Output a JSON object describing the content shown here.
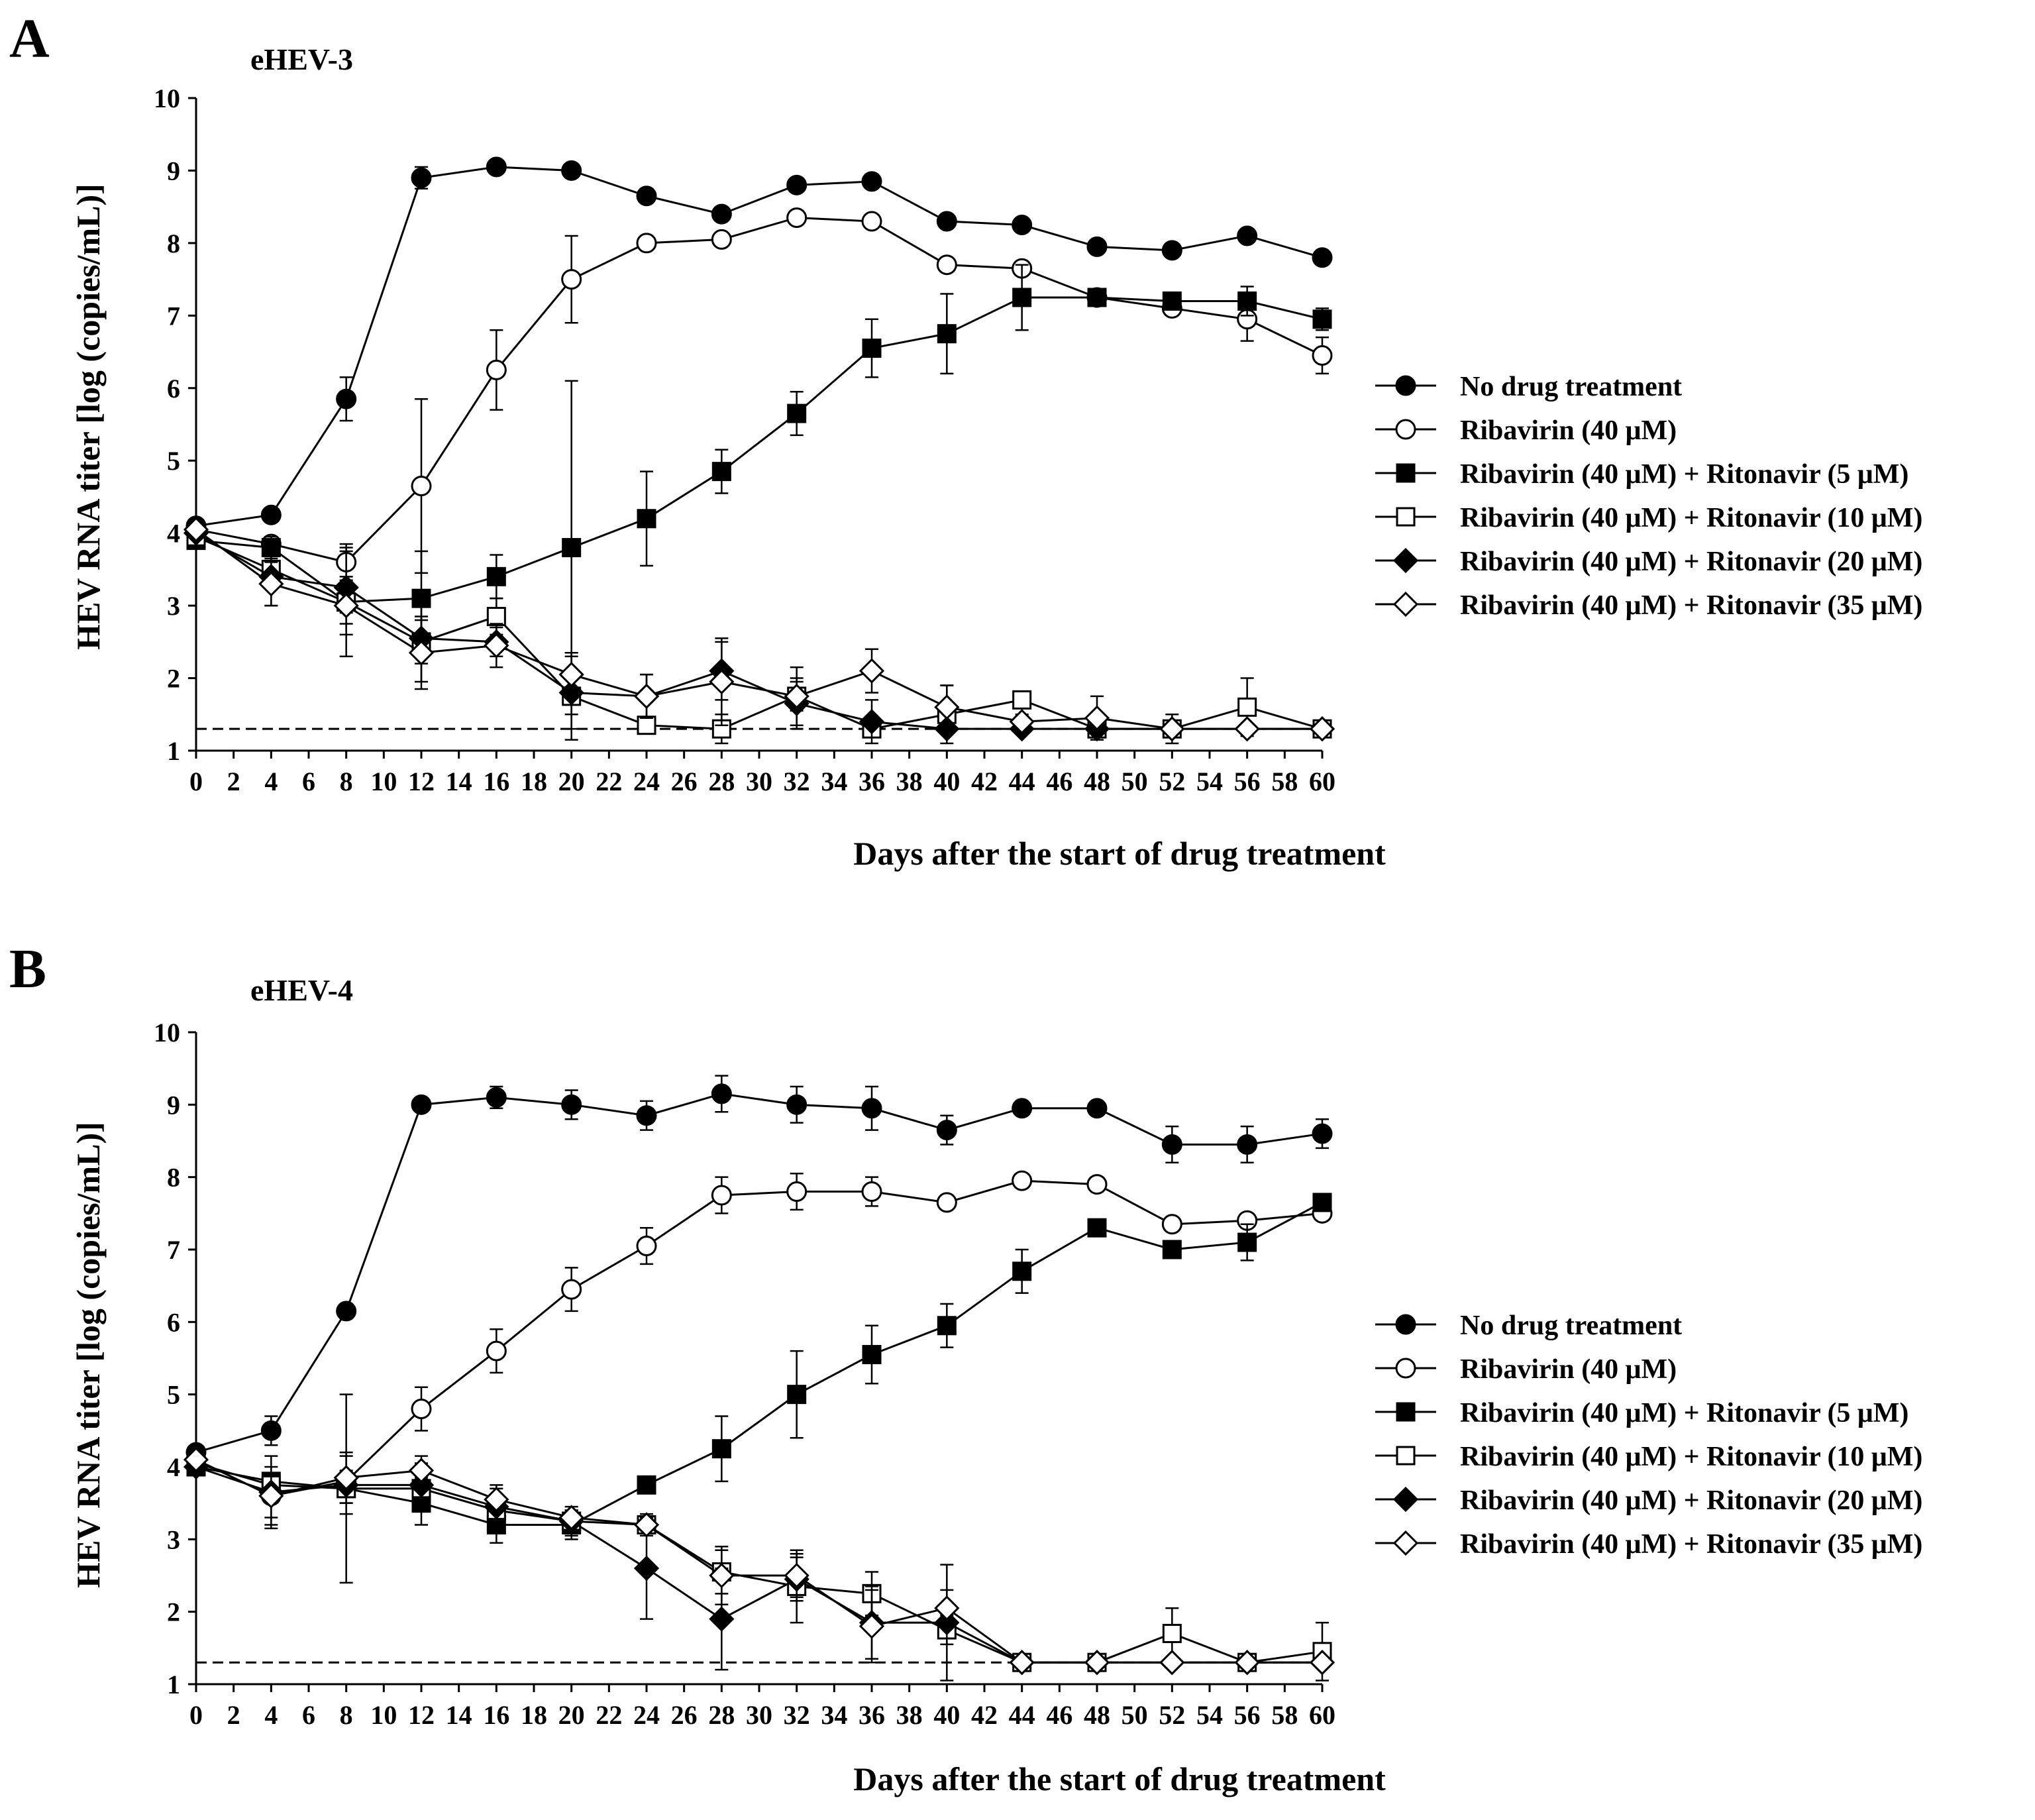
{
  "chart_data": [
    {
      "panel": "A",
      "type": "line",
      "title": "eHEV-3",
      "xlabel": "Days after the start of drug treatment",
      "ylabel": "HEV RNA titer [log (copies/mL)]",
      "xlim": [
        0,
        60
      ],
      "ylim": [
        1,
        10
      ],
      "x_ticks": [
        "0",
        "2",
        "4",
        "6",
        "8",
        "10",
        "12",
        "14",
        "16",
        "18",
        "20",
        "22",
        "24",
        "26",
        "28",
        "30",
        "32",
        "34",
        "36",
        "38",
        "40",
        "42",
        "44",
        "46",
        "48",
        "50",
        "52",
        "54",
        "56",
        "58",
        "60"
      ],
      "y_ticks": [
        "1",
        "2",
        "3",
        "4",
        "5",
        "6",
        "7",
        "8",
        "9",
        "10"
      ],
      "detection_limit": 1.3,
      "x": [
        0,
        4,
        8,
        12,
        16,
        20,
        24,
        28,
        32,
        36,
        40,
        44,
        48,
        52,
        56,
        60
      ],
      "series": [
        {
          "name": "No drug treatment",
          "marker": "circle",
          "fill": "#000000",
          "values": [
            4.1,
            4.25,
            5.85,
            8.9,
            9.05,
            9.0,
            8.65,
            8.4,
            8.8,
            8.85,
            8.3,
            8.25,
            7.95,
            7.9,
            8.1,
            7.8
          ],
          "errors": [
            0.05,
            0.05,
            0.3,
            0.15,
            0.05,
            0.05,
            0.05,
            0.05,
            0.05,
            0.05,
            0.05,
            0.05,
            0.05,
            0.05,
            0.05,
            0.05
          ]
        },
        {
          "name": "Ribavirin (40 μM)",
          "marker": "circle",
          "fill": "#ffffff",
          "values": [
            4.05,
            3.85,
            3.6,
            4.65,
            6.25,
            7.5,
            8.0,
            8.05,
            8.35,
            8.3,
            7.7,
            7.65,
            7.25,
            7.1,
            6.95,
            6.45
          ],
          "errors": [
            0.05,
            0.1,
            0.25,
            1.2,
            0.55,
            0.6,
            0.05,
            0.05,
            0.05,
            0.05,
            0.05,
            0.05,
            0.05,
            0.05,
            0.3,
            0.25
          ]
        },
        {
          "name": "Ribavirin (40 μM) + Ritonavir (5 μM)",
          "marker": "square",
          "fill": "#000000",
          "values": [
            3.9,
            3.8,
            3.05,
            3.1,
            3.4,
            3.8,
            4.2,
            4.85,
            5.65,
            6.55,
            6.75,
            7.25,
            7.25,
            7.2,
            7.2,
            6.95
          ],
          "errors": [
            0.05,
            0.15,
            0.75,
            0.65,
            0.3,
            2.3,
            0.65,
            0.3,
            0.3,
            0.4,
            0.55,
            0.45,
            0.05,
            0.1,
            0.2,
            0.15
          ]
        },
        {
          "name": "Ribavirin (40 μM) + Ritonavir (10 μM)",
          "marker": "square",
          "fill": "#ffffff",
          "values": [
            3.95,
            3.5,
            3.05,
            2.5,
            2.85,
            1.75,
            1.35,
            1.3,
            1.75,
            1.3,
            1.5,
            1.7,
            1.3,
            1.3,
            1.6,
            1.3
          ],
          "errors": [
            0.05,
            0.2,
            0.15,
            0.3,
            0.25,
            0.6,
            0.05,
            0.2,
            0.4,
            0.05,
            0.4,
            0.05,
            0.05,
            0.05,
            0.4,
            0.05
          ]
        },
        {
          "name": "Ribavirin (40 μM) + Ritonavir (20 μM)",
          "marker": "diamond",
          "fill": "#000000",
          "values": [
            4.0,
            3.4,
            3.25,
            2.55,
            2.5,
            1.8,
            1.75,
            2.1,
            1.65,
            1.4,
            1.3,
            1.3,
            1.3,
            1.3,
            1.3,
            1.3
          ],
          "errors": [
            0.05,
            0.4,
            0.5,
            0.6,
            0.2,
            0.5,
            0.3,
            0.4,
            0.35,
            0.3,
            0.05,
            0.05,
            0.05,
            0.05,
            0.05,
            0.05
          ]
        },
        {
          "name": "Ribavirin (40 μM) + Ritonavir (35 μM)",
          "marker": "diamond",
          "fill": "#ffffff",
          "values": [
            4.05,
            3.3,
            3.0,
            2.35,
            2.45,
            2.05,
            1.75,
            1.95,
            1.75,
            2.1,
            1.6,
            1.4,
            1.45,
            1.3,
            1.3,
            1.3
          ],
          "errors": [
            0.05,
            0.3,
            0.4,
            0.5,
            0.3,
            0.3,
            0.3,
            0.6,
            0.2,
            0.3,
            0.3,
            0.1,
            0.3,
            0.2,
            0.05,
            0.05
          ]
        }
      ]
    },
    {
      "panel": "B",
      "type": "line",
      "title": "eHEV-4",
      "xlabel": "Days after the start of drug treatment",
      "ylabel": "HEV RNA titer [log (copies/mL)]",
      "xlim": [
        0,
        60
      ],
      "ylim": [
        1,
        10
      ],
      "x_ticks": [
        "0",
        "2",
        "4",
        "6",
        "8",
        "10",
        "12",
        "14",
        "16",
        "18",
        "20",
        "22",
        "24",
        "26",
        "28",
        "30",
        "32",
        "34",
        "36",
        "38",
        "40",
        "42",
        "44",
        "46",
        "48",
        "50",
        "52",
        "54",
        "56",
        "58",
        "60"
      ],
      "y_ticks": [
        "1",
        "2",
        "3",
        "4",
        "5",
        "6",
        "7",
        "8",
        "9",
        "10"
      ],
      "detection_limit": 1.3,
      "x": [
        0,
        4,
        8,
        12,
        16,
        20,
        24,
        28,
        32,
        36,
        40,
        44,
        48,
        52,
        56,
        60
      ],
      "series": [
        {
          "name": "No drug treatment",
          "marker": "circle",
          "fill": "#000000",
          "values": [
            4.2,
            4.5,
            6.15,
            9.0,
            9.1,
            9.0,
            8.85,
            9.15,
            9.0,
            8.95,
            8.65,
            8.95,
            8.95,
            8.45,
            8.45,
            8.6
          ],
          "errors": [
            0.05,
            0.2,
            0.1,
            0.05,
            0.15,
            0.2,
            0.2,
            0.25,
            0.25,
            0.3,
            0.2,
            0.05,
            0.05,
            0.25,
            0.25,
            0.2
          ]
        },
        {
          "name": "Ribavirin (40 μM)",
          "marker": "circle",
          "fill": "#ffffff",
          "values": [
            4.1,
            3.6,
            3.8,
            4.8,
            5.6,
            6.45,
            7.05,
            7.75,
            7.8,
            7.8,
            7.65,
            7.95,
            7.9,
            7.35,
            7.4,
            7.5
          ],
          "errors": [
            0.05,
            0.3,
            0.15,
            0.3,
            0.3,
            0.3,
            0.25,
            0.25,
            0.25,
            0.2,
            0.1,
            0.05,
            0.1,
            0.05,
            0.05,
            0.05
          ]
        },
        {
          "name": "Ribavirin (40 μM) + Ritonavir (5 μM)",
          "marker": "square",
          "fill": "#000000",
          "values": [
            4.0,
            3.8,
            3.7,
            3.5,
            3.2,
            3.2,
            3.75,
            4.25,
            5.0,
            5.55,
            5.95,
            6.7,
            7.3,
            7.0,
            7.1,
            7.65
          ],
          "errors": [
            0.05,
            0.1,
            1.3,
            0.3,
            0.25,
            0.2,
            0.05,
            0.45,
            0.6,
            0.4,
            0.3,
            0.3,
            0.05,
            0.05,
            0.25,
            0.1
          ]
        },
        {
          "name": "Ribavirin (40 μM) + Ritonavir (10 μM)",
          "marker": "square",
          "fill": "#ffffff",
          "values": [
            4.05,
            3.75,
            3.7,
            3.7,
            3.4,
            3.25,
            3.2,
            2.55,
            2.35,
            2.25,
            1.75,
            1.3,
            1.3,
            1.7,
            1.3,
            1.45
          ],
          "errors": [
            0.05,
            0.1,
            0.2,
            0.15,
            0.2,
            0.15,
            0.1,
            0.3,
            0.5,
            0.3,
            0.2,
            0.05,
            0.05,
            0.35,
            0.05,
            0.4
          ]
        },
        {
          "name": "Ribavirin (40 μM) + Ritonavir (20 μM)",
          "marker": "diamond",
          "fill": "#000000",
          "values": [
            4.0,
            3.65,
            3.75,
            3.75,
            3.45,
            3.25,
            2.6,
            1.9,
            2.45,
            1.85,
            1.85,
            1.3,
            1.3,
            1.3,
            1.3,
            1.3
          ],
          "errors": [
            0.05,
            0.5,
            0.4,
            0.3,
            0.3,
            0.2,
            0.7,
            0.7,
            0.3,
            0.5,
            0.8,
            0.05,
            0.05,
            0.05,
            0.05,
            0.05
          ]
        },
        {
          "name": "Ribavirin (40 μM) + Ritonavir (35 μM)",
          "marker": "diamond",
          "fill": "#ffffff",
          "values": [
            4.1,
            3.6,
            3.85,
            3.95,
            3.55,
            3.3,
            3.2,
            2.5,
            2.5,
            1.8,
            2.05,
            1.3,
            1.3,
            1.3,
            1.3,
            1.3
          ],
          "errors": [
            0.05,
            0.4,
            0.35,
            0.2,
            0.15,
            0.1,
            0.15,
            0.4,
            0.3,
            0.5,
            0.25,
            0.05,
            0.05,
            0.05,
            0.05,
            0.05
          ]
        }
      ]
    }
  ]
}
